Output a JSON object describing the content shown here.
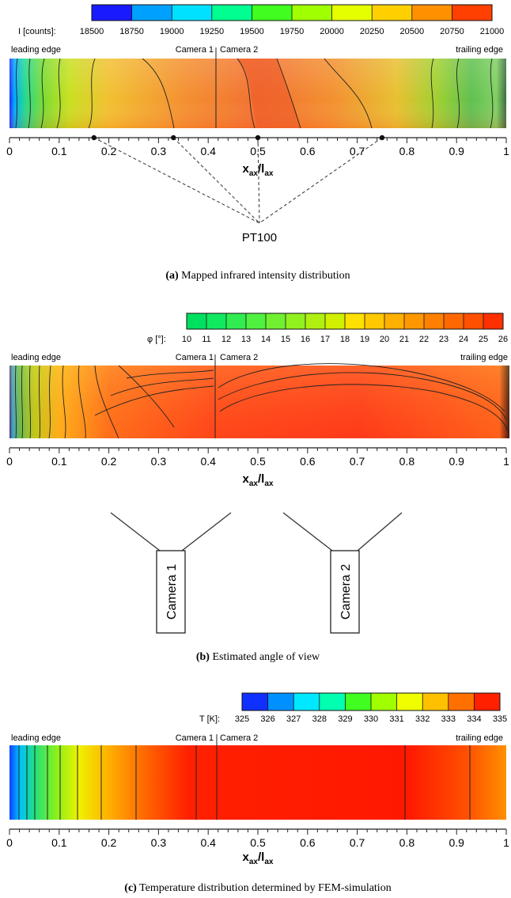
{
  "panels": [
    {
      "id": "a",
      "colorbar": {
        "label": "I [counts]:",
        "ticks": [
          "18500",
          "18750",
          "19000",
          "19250",
          "19500",
          "19750",
          "20000",
          "20250",
          "20500",
          "20750",
          "21000"
        ],
        "colors": [
          "#1a1aff",
          "#00a0ff",
          "#00e0ff",
          "#00ff90",
          "#40ff20",
          "#a0ff00",
          "#e6ff00",
          "#ffd000",
          "#ff9000",
          "#ff4000"
        ]
      },
      "labels": {
        "leading": "leading edge",
        "camera1": "Camera 1",
        "camera2": "Camera 2",
        "trailing": "trailing edge"
      },
      "axis": {
        "ticks": [
          "0",
          "0.1",
          "0.2",
          "0.3",
          "0.4",
          "0.5",
          "0.6",
          "0.7",
          "0.8",
          "0.9",
          "1"
        ],
        "xlabel_main": "x",
        "xlabel_sub1": "ax",
        "xlabel_mid": "/l",
        "xlabel_sub2": "ax"
      },
      "sensor": {
        "label": "PT100",
        "positions": [
          0.17,
          0.33,
          0.5,
          0.75
        ]
      },
      "caption": {
        "letter": "(a)",
        "text": "Mapped infrared intensity distribution"
      }
    },
    {
      "id": "b",
      "colorbar": {
        "label": "φ [°]:",
        "ticks": [
          "10",
          "11",
          "12",
          "13",
          "14",
          "15",
          "16",
          "17",
          "18",
          "19",
          "20",
          "21",
          "22",
          "23",
          "24",
          "25",
          "26"
        ],
        "colors": [
          "#00e060",
          "#10e860",
          "#30ec50",
          "#50f040",
          "#70f030",
          "#90f020",
          "#b0f010",
          "#d0f000",
          "#ffe000",
          "#ffc800",
          "#ffb000",
          "#ff9800",
          "#ff8000",
          "#ff6800",
          "#ff5000",
          "#ff3000"
        ]
      },
      "labels": {
        "leading": "leading edge",
        "camera1": "Camera 1",
        "camera2": "Camera 2",
        "trailing": "trailing edge"
      },
      "axis": {
        "ticks": [
          "0",
          "0.1",
          "0.2",
          "0.3",
          "0.4",
          "0.5",
          "0.6",
          "0.7",
          "0.8",
          "0.9",
          "1"
        ],
        "xlabel_main": "x",
        "xlabel_sub1": "ax",
        "xlabel_mid": "/l",
        "xlabel_sub2": "ax"
      },
      "cameras": [
        "Camera 1",
        "Camera 2"
      ],
      "caption": {
        "letter": "(b)",
        "text": "Estimated angle of view"
      }
    },
    {
      "id": "c",
      "colorbar": {
        "label": "T [K]:",
        "ticks": [
          "325",
          "326",
          "327",
          "328",
          "329",
          "330",
          "331",
          "332",
          "333",
          "334",
          "335"
        ],
        "colors": [
          "#1030ff",
          "#0090ff",
          "#00e8ff",
          "#00ffb0",
          "#40ff20",
          "#a0ff00",
          "#f0ff00",
          "#ffc000",
          "#ff7000",
          "#ff2000"
        ]
      },
      "labels": {
        "leading": "leading edge",
        "camera1": "Camera 1",
        "camera2": "Camera 2",
        "trailing": "trailing edge"
      },
      "axis": {
        "ticks": [
          "0",
          "0.1",
          "0.2",
          "0.3",
          "0.4",
          "0.5",
          "0.6",
          "0.7",
          "0.8",
          "0.9",
          "1"
        ],
        "xlabel_main": "x",
        "xlabel_sub1": "ax",
        "xlabel_mid": "/l",
        "xlabel_sub2": "ax"
      },
      "caption": {
        "letter": "(c)",
        "text": "Temperature distribution determined by FEM-simulation"
      }
    }
  ]
}
